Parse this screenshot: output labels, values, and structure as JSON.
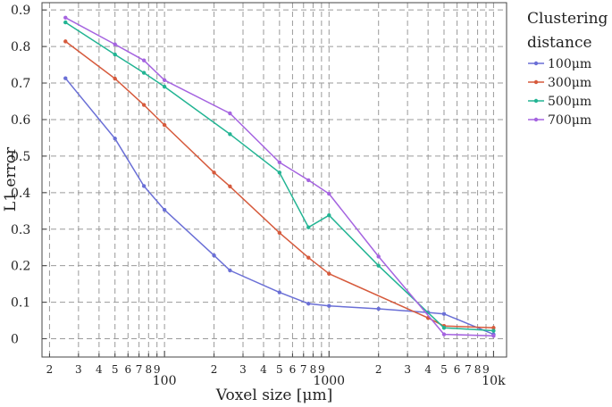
{
  "chart_data": {
    "type": "line",
    "xscale": "log",
    "xlabel": "Voxel size [μm]",
    "ylabel": "L1 error",
    "xlim": [
      18,
      12000
    ],
    "ylim": [
      -0.05,
      0.92
    ],
    "grid": true,
    "x_tick_labels": [
      {
        "value": 20,
        "label": "2",
        "major": false
      },
      {
        "value": 30,
        "label": "3",
        "major": false
      },
      {
        "value": 40,
        "label": "4",
        "major": false
      },
      {
        "value": 50,
        "label": "5",
        "major": false
      },
      {
        "value": 60,
        "label": "6",
        "major": false
      },
      {
        "value": 70,
        "label": "7",
        "major": false
      },
      {
        "value": 80,
        "label": "8",
        "major": false
      },
      {
        "value": 90,
        "label": "9",
        "major": false
      },
      {
        "value": 100,
        "label": "100",
        "major": true
      },
      {
        "value": 200,
        "label": "2",
        "major": false
      },
      {
        "value": 300,
        "label": "3",
        "major": false
      },
      {
        "value": 400,
        "label": "4",
        "major": false
      },
      {
        "value": 500,
        "label": "5",
        "major": false
      },
      {
        "value": 600,
        "label": "6",
        "major": false
      },
      {
        "value": 700,
        "label": "7",
        "major": false
      },
      {
        "value": 800,
        "label": "8",
        "major": false
      },
      {
        "value": 900,
        "label": "9",
        "major": false
      },
      {
        "value": 1000,
        "label": "1000",
        "major": true
      },
      {
        "value": 2000,
        "label": "2",
        "major": false
      },
      {
        "value": 3000,
        "label": "3",
        "major": false
      },
      {
        "value": 4000,
        "label": "4",
        "major": false
      },
      {
        "value": 5000,
        "label": "5",
        "major": false
      },
      {
        "value": 6000,
        "label": "6",
        "major": false
      },
      {
        "value": 7000,
        "label": "7",
        "major": false
      },
      {
        "value": 8000,
        "label": "8",
        "major": false
      },
      {
        "value": 9000,
        "label": "9",
        "major": false
      },
      {
        "value": 10000,
        "label": "10k",
        "major": true
      }
    ],
    "y_ticks": [
      0,
      0.1,
      0.2,
      0.3,
      0.4,
      0.5,
      0.6,
      0.7,
      0.8,
      0.9
    ],
    "y_tick_labels": [
      "0",
      "0.1",
      "0.2",
      "0.3",
      "0.4",
      "0.5",
      "0.6",
      "0.7",
      "0.8",
      "0.9"
    ],
    "legend": {
      "title_lines": [
        "Clustering",
        "distance"
      ],
      "placement": "outside-right"
    },
    "series": [
      {
        "name": "100μm",
        "color": "#6a6fd6",
        "points": [
          [
            25,
            0.713
          ],
          [
            50,
            0.548
          ],
          [
            75,
            0.418
          ],
          [
            100,
            0.353
          ],
          [
            200,
            0.228
          ],
          [
            250,
            0.187
          ],
          [
            500,
            0.127
          ],
          [
            750,
            0.096
          ],
          [
            1000,
            0.09
          ],
          [
            2000,
            0.082
          ],
          [
            4000,
            0.072
          ],
          [
            5000,
            0.068
          ],
          [
            10000,
            0.012
          ]
        ]
      },
      {
        "name": "300μm",
        "color": "#d65a3c",
        "points": [
          [
            25,
            0.814
          ],
          [
            50,
            0.712
          ],
          [
            75,
            0.64
          ],
          [
            100,
            0.585
          ],
          [
            200,
            0.455
          ],
          [
            250,
            0.417
          ],
          [
            500,
            0.29
          ],
          [
            750,
            0.222
          ],
          [
            1000,
            0.178
          ],
          [
            4000,
            0.057
          ],
          [
            5000,
            0.035
          ],
          [
            10000,
            0.03
          ]
        ]
      },
      {
        "name": "500μm",
        "color": "#22b493",
        "points": [
          [
            25,
            0.866
          ],
          [
            50,
            0.778
          ],
          [
            75,
            0.728
          ],
          [
            100,
            0.69
          ],
          [
            250,
            0.56
          ],
          [
            500,
            0.455
          ],
          [
            750,
            0.305
          ],
          [
            1000,
            0.338
          ],
          [
            2000,
            0.2
          ],
          [
            5000,
            0.03
          ],
          [
            10000,
            0.022
          ]
        ]
      },
      {
        "name": "700μm",
        "color": "#a564e0",
        "points": [
          [
            25,
            0.879
          ],
          [
            50,
            0.806
          ],
          [
            75,
            0.762
          ],
          [
            100,
            0.708
          ],
          [
            250,
            0.617
          ],
          [
            500,
            0.483
          ],
          [
            750,
            0.434
          ],
          [
            1000,
            0.397
          ],
          [
            2000,
            0.225
          ],
          [
            5000,
            0.012
          ],
          [
            10000,
            0.008
          ]
        ]
      }
    ]
  }
}
